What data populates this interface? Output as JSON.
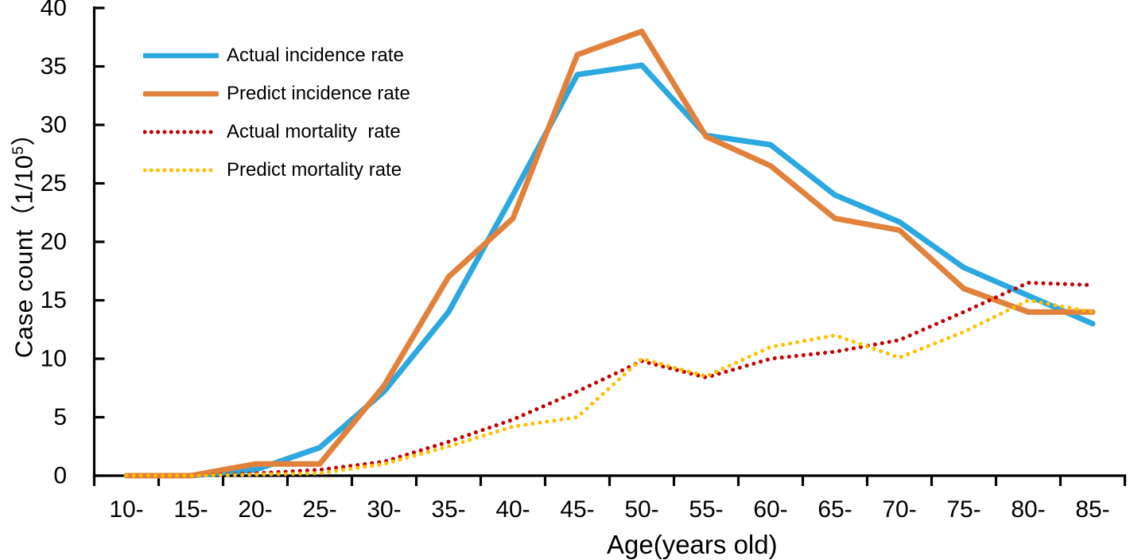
{
  "chart_data": {
    "type": "line",
    "title": "",
    "xlabel": "Age(years old)",
    "ylabel": "Case count（1/10⁵）",
    "ylabel_parts": {
      "pre": "Case count（1/10",
      "sup": "5",
      "post": "）"
    },
    "categories": [
      "10-",
      "15-",
      "20-",
      "25-",
      "30-",
      "35-",
      "40-",
      "45-",
      "50-",
      "55-",
      "60-",
      "65-",
      "70-",
      "75-",
      "80-",
      "85-"
    ],
    "ylim": [
      0,
      40
    ],
    "ytick_interval": 5,
    "yticks": [
      0,
      5,
      10,
      15,
      20,
      25,
      30,
      35,
      40
    ],
    "grid": false,
    "legend_position": "top-left-inside",
    "axis_color": "#000000",
    "series": [
      {
        "name": "Actual incidence rate",
        "style": "solid",
        "color": "#2CA8E0",
        "values": [
          0,
          0,
          0.5,
          2.4,
          7.2,
          14,
          24,
          34.3,
          35.1,
          29.1,
          28.3,
          24,
          21.7,
          17.8,
          15.4,
          13
        ]
      },
      {
        "name": "Predict incidence rate",
        "style": "solid",
        "color": "#E2813B",
        "values": [
          0,
          0,
          1,
          1,
          7.7,
          17,
          22,
          36,
          38,
          29,
          26.5,
          22,
          21,
          16,
          14,
          14
        ]
      },
      {
        "name": "Actual mortality  rate",
        "style": "dotted",
        "color": "#C00000",
        "values": [
          0,
          0,
          0.2,
          0.5,
          1.2,
          2.9,
          4.8,
          7.2,
          9.8,
          8.4,
          10,
          10.6,
          11.6,
          14,
          16.5,
          16.3
        ]
      },
      {
        "name": "Predict mortality rate",
        "style": "dotted",
        "color": "#FFC000",
        "values": [
          0,
          0,
          0.1,
          0.2,
          1,
          2.5,
          4.2,
          5,
          10,
          8.5,
          11,
          12,
          10.1,
          12.3,
          15,
          14
        ]
      }
    ]
  }
}
